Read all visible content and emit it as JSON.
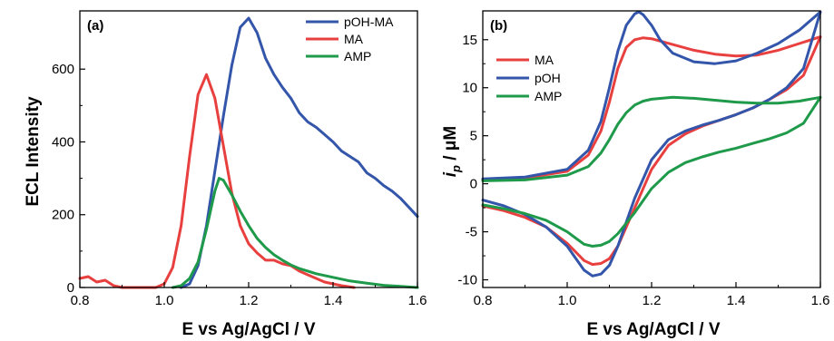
{
  "chart_data": [
    {
      "type": "line",
      "panel_label": "(a)",
      "xlabel": "E vs Ag/AgCl / V",
      "ylabel": "ECL Intensity",
      "xlim": [
        0.8,
        1.6
      ],
      "ylim": [
        0,
        760
      ],
      "x_ticks": [
        0.8,
        1.0,
        1.2,
        1.4,
        1.6
      ],
      "x_tick_labels": [
        "0.8",
        "1.0",
        "1.2",
        "1.4",
        "1.6"
      ],
      "y_ticks": [
        0,
        200,
        400,
        600
      ],
      "y_tick_labels": [
        "0",
        "200",
        "400",
        "600"
      ],
      "grid": false,
      "legend_position": "top-right",
      "series": [
        {
          "name": "pOH-MA",
          "color": "#3355aa",
          "x": [
            1.04,
            1.06,
            1.08,
            1.1,
            1.12,
            1.14,
            1.16,
            1.18,
            1.2,
            1.22,
            1.24,
            1.26,
            1.28,
            1.3,
            1.32,
            1.34,
            1.36,
            1.38,
            1.4,
            1.42,
            1.44,
            1.46,
            1.48,
            1.5,
            1.52,
            1.54,
            1.56,
            1.58,
            1.6
          ],
          "values": [
            0,
            10,
            60,
            170,
            320,
            470,
            610,
            715,
            740,
            700,
            630,
            585,
            550,
            520,
            480,
            455,
            440,
            420,
            400,
            375,
            360,
            345,
            315,
            300,
            280,
            265,
            245,
            220,
            195
          ]
        },
        {
          "name": "MA",
          "color": "#e8403f",
          "x": [
            0.8,
            0.82,
            0.84,
            0.86,
            0.88,
            0.9,
            0.92,
            0.94,
            0.96,
            0.98,
            1.0,
            1.02,
            1.04,
            1.06,
            1.08,
            1.1,
            1.12,
            1.14,
            1.16,
            1.18,
            1.2,
            1.22,
            1.24,
            1.26,
            1.28,
            1.3,
            1.32,
            1.34,
            1.36,
            1.38,
            1.4,
            1.42,
            1.45
          ],
          "values": [
            25,
            30,
            15,
            20,
            5,
            0,
            0,
            0,
            0,
            0,
            10,
            55,
            170,
            360,
            530,
            585,
            520,
            390,
            260,
            170,
            120,
            95,
            75,
            75,
            65,
            60,
            45,
            35,
            25,
            15,
            10,
            5,
            0
          ]
        },
        {
          "name": "AMP",
          "color": "#1e9a4a",
          "x": [
            1.02,
            1.04,
            1.06,
            1.08,
            1.1,
            1.12,
            1.13,
            1.14,
            1.16,
            1.18,
            1.2,
            1.22,
            1.24,
            1.26,
            1.28,
            1.3,
            1.32,
            1.34,
            1.36,
            1.4,
            1.44,
            1.48,
            1.52,
            1.56,
            1.6
          ],
          "values": [
            0,
            5,
            25,
            70,
            160,
            265,
            300,
            295,
            255,
            210,
            170,
            135,
            110,
            90,
            75,
            62,
            52,
            45,
            38,
            28,
            18,
            12,
            6,
            3,
            0
          ]
        }
      ]
    },
    {
      "type": "line",
      "panel_label": "(b)",
      "xlabel": "E vs Ag/AgCl / V",
      "ylabel_symbol": "i",
      "ylabel_sub": "p",
      "ylabel_unit": " / μM",
      "xlim": [
        0.8,
        1.6
      ],
      "ylim": [
        -10.8,
        18
      ],
      "x_ticks": [
        0.8,
        1.0,
        1.2,
        1.4,
        1.6
      ],
      "x_tick_labels": [
        "0.8",
        "1.0",
        "1.2",
        "1.4",
        "1.6"
      ],
      "y_ticks": [
        -10,
        -5,
        0,
        5,
        10,
        15
      ],
      "y_tick_labels": [
        "-10",
        "-5",
        "0",
        "5",
        "10",
        "15"
      ],
      "grid": false,
      "legend_position": "top-left",
      "series": [
        {
          "name": "MA",
          "color": "#e8403f",
          "x": [
            0.8,
            0.9,
            1.0,
            1.05,
            1.08,
            1.1,
            1.12,
            1.14,
            1.16,
            1.18,
            1.2,
            1.25,
            1.3,
            1.35,
            1.4,
            1.45,
            1.5,
            1.55,
            1.6,
            1.56,
            1.52,
            1.48,
            1.44,
            1.4,
            1.36,
            1.32,
            1.28,
            1.24,
            1.2,
            1.16,
            1.12,
            1.1,
            1.08,
            1.06,
            1.04,
            1.0,
            0.95,
            0.9,
            0.85,
            0.8
          ],
          "values": [
            0.4,
            0.6,
            1.3,
            3.0,
            5.5,
            8.5,
            12.0,
            14.2,
            15.0,
            15.2,
            15.1,
            14.5,
            13.9,
            13.5,
            13.3,
            13.4,
            13.9,
            14.6,
            15.3,
            11.3,
            9.8,
            8.8,
            7.9,
            7.2,
            6.6,
            6.0,
            5.2,
            4.0,
            1.5,
            -2.5,
            -6.5,
            -7.8,
            -8.3,
            -8.4,
            -8.0,
            -6.2,
            -4.5,
            -3.5,
            -2.8,
            -2.3
          ]
        },
        {
          "name": "pOH",
          "color": "#3355aa",
          "x": [
            0.8,
            0.9,
            1.0,
            1.05,
            1.08,
            1.1,
            1.12,
            1.14,
            1.16,
            1.17,
            1.18,
            1.2,
            1.22,
            1.25,
            1.3,
            1.35,
            1.4,
            1.45,
            1.5,
            1.55,
            1.6,
            1.56,
            1.52,
            1.48,
            1.44,
            1.4,
            1.36,
            1.32,
            1.28,
            1.24,
            1.2,
            1.16,
            1.12,
            1.1,
            1.08,
            1.06,
            1.04,
            1.0,
            0.95,
            0.9,
            0.85,
            0.8
          ],
          "values": [
            0.5,
            0.7,
            1.5,
            3.5,
            6.5,
            10.0,
            13.8,
            16.5,
            17.7,
            17.9,
            17.6,
            16.5,
            15.0,
            13.6,
            12.7,
            12.5,
            12.8,
            13.6,
            14.6,
            16.0,
            17.9,
            12.0,
            10.0,
            8.8,
            7.9,
            7.2,
            6.6,
            6.1,
            5.5,
            4.6,
            2.5,
            -1.5,
            -6.5,
            -8.5,
            -9.4,
            -9.6,
            -9.0,
            -6.5,
            -4.5,
            -3.2,
            -2.3,
            -1.7
          ]
        },
        {
          "name": "AMP",
          "color": "#1e9a4a",
          "x": [
            0.8,
            0.9,
            1.0,
            1.05,
            1.08,
            1.1,
            1.12,
            1.14,
            1.16,
            1.18,
            1.2,
            1.25,
            1.3,
            1.35,
            1.4,
            1.45,
            1.5,
            1.55,
            1.6,
            1.56,
            1.52,
            1.48,
            1.44,
            1.4,
            1.36,
            1.32,
            1.28,
            1.24,
            1.2,
            1.16,
            1.12,
            1.1,
            1.08,
            1.06,
            1.04,
            1.0,
            0.95,
            0.9,
            0.85,
            0.8
          ],
          "values": [
            0.3,
            0.4,
            0.9,
            1.8,
            3.2,
            4.6,
            6.2,
            7.4,
            8.2,
            8.6,
            8.8,
            9.0,
            8.9,
            8.7,
            8.5,
            8.4,
            8.4,
            8.6,
            9.0,
            6.3,
            5.3,
            4.7,
            4.2,
            3.7,
            3.3,
            2.8,
            2.2,
            1.2,
            -0.5,
            -3.0,
            -5.2,
            -6.0,
            -6.4,
            -6.5,
            -6.3,
            -5.0,
            -3.8,
            -3.1,
            -2.6,
            -2.2
          ]
        }
      ]
    }
  ]
}
